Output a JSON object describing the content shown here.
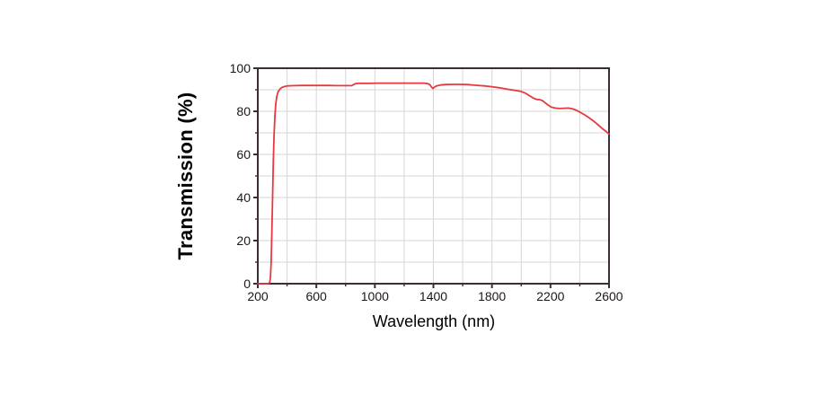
{
  "figure": {
    "background": "#ffffff"
  },
  "chart_data": {
    "type": "line",
    "title": "",
    "xlabel": "Wavelength (nm)",
    "ylabel": "Transmission (%)",
    "xlim": [
      200,
      2600
    ],
    "ylim": [
      0,
      100
    ],
    "x_major_ticks": [
      200,
      600,
      1000,
      1400,
      1800,
      2200,
      2600
    ],
    "x_minor_step": 200,
    "y_major_ticks": [
      0,
      20,
      40,
      60,
      80,
      100
    ],
    "y_minor_step": 10,
    "grid": true,
    "grid_x_step": 200,
    "grid_y_step": 10,
    "legend_position": "none",
    "colors": {
      "line": "#e8393e",
      "grid": "#d6d6d6",
      "axis": "#3a2e2e",
      "tick_label": "#1c1616",
      "axis_title": "#000000"
    },
    "series": [
      {
        "name": "transmission",
        "points": [
          [
            200,
            0
          ],
          [
            255,
            0
          ],
          [
            272,
            0
          ],
          [
            281,
            0.6
          ],
          [
            286,
            2.5
          ],
          [
            291,
            9
          ],
          [
            296,
            23
          ],
          [
            301,
            41
          ],
          [
            306,
            57
          ],
          [
            311,
            69
          ],
          [
            317,
            78
          ],
          [
            323,
            83.5
          ],
          [
            330,
            87
          ],
          [
            340,
            89.2
          ],
          [
            352,
            90.4
          ],
          [
            366,
            91.1
          ],
          [
            382,
            91.5
          ],
          [
            400,
            91.8
          ],
          [
            450,
            91.9
          ],
          [
            500,
            92
          ],
          [
            560,
            92
          ],
          [
            620,
            92
          ],
          [
            680,
            92
          ],
          [
            740,
            91.9
          ],
          [
            800,
            91.9
          ],
          [
            842,
            91.9
          ],
          [
            856,
            92.5
          ],
          [
            872,
            92.9
          ],
          [
            900,
            93
          ],
          [
            960,
            93
          ],
          [
            1030,
            93.1
          ],
          [
            1100,
            93.1
          ],
          [
            1180,
            93.1
          ],
          [
            1260,
            93.1
          ],
          [
            1330,
            93.1
          ],
          [
            1358,
            92.9
          ],
          [
            1375,
            92.4
          ],
          [
            1389,
            91.1
          ],
          [
            1397,
            90.6
          ],
          [
            1407,
            91.2
          ],
          [
            1421,
            91.8
          ],
          [
            1447,
            92.2
          ],
          [
            1482,
            92.4
          ],
          [
            1530,
            92.5
          ],
          [
            1580,
            92.5
          ],
          [
            1632,
            92.4
          ],
          [
            1690,
            92.1
          ],
          [
            1748,
            91.8
          ],
          [
            1800,
            91.4
          ],
          [
            1852,
            90.9
          ],
          [
            1902,
            90.3
          ],
          [
            1952,
            89.8
          ],
          [
            2000,
            89.2
          ],
          [
            2032,
            88.3
          ],
          [
            2062,
            87
          ],
          [
            2087,
            86
          ],
          [
            2107,
            85.5
          ],
          [
            2126,
            85.4
          ],
          [
            2144,
            85
          ],
          [
            2163,
            84
          ],
          [
            2183,
            82.9
          ],
          [
            2204,
            82
          ],
          [
            2232,
            81.5
          ],
          [
            2262,
            81.3
          ],
          [
            2292,
            81.4
          ],
          [
            2322,
            81.5
          ],
          [
            2348,
            81.2
          ],
          [
            2374,
            80.6
          ],
          [
            2402,
            79.6
          ],
          [
            2432,
            78.4
          ],
          [
            2462,
            77.1
          ],
          [
            2492,
            75.6
          ],
          [
            2522,
            73.9
          ],
          [
            2552,
            72.1
          ],
          [
            2577,
            70.8
          ],
          [
            2600,
            69.4
          ]
        ]
      }
    ]
  }
}
